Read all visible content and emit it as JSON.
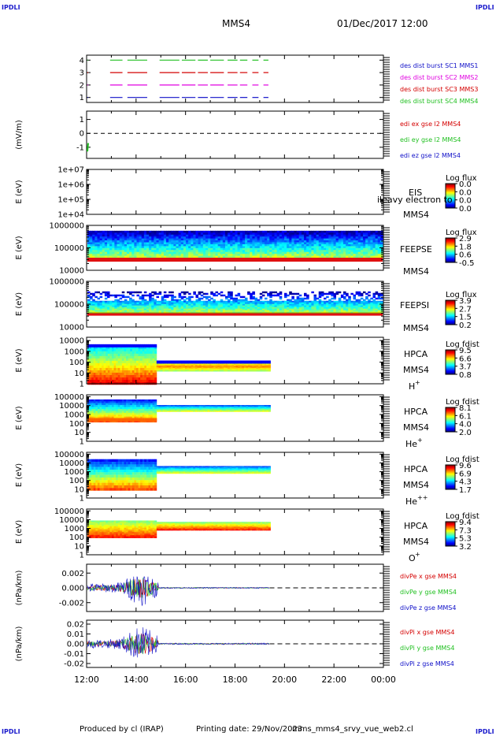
{
  "header": {
    "corner_label": "IPDLI",
    "spacecraft": "MMS4",
    "datetime": "01/Dec/2017 12:00"
  },
  "footer": {
    "produced_by": "Produced by cl (IRAP)",
    "printing_date": "Printing date: 29/Nov/2023",
    "file_name": "mms_mms4_srvy_vue_web2.cl"
  },
  "colors": {
    "red": "#d40000",
    "green": "#22c022",
    "blue": "#1010c8",
    "magenta": "#e000e0",
    "label_blue": "#1a1acc"
  },
  "chart_data": [
    {
      "type": "line",
      "panel": "burst",
      "yticks": [
        "1",
        "2",
        "3",
        "4"
      ],
      "ylim": [
        0.6,
        4.4
      ],
      "series": [
        {
          "name": "des dist burst SC1 MMS1",
          "color": "#1010c8",
          "level": 1
        },
        {
          "name": "des dist burst SC2 MMS2",
          "color": "#e000e0",
          "level": 2
        },
        {
          "name": "des dist burst SC3 MMS3",
          "color": "#d40000",
          "level": 3
        },
        {
          "name": "des dist burst SC4 MMS4",
          "color": "#22c022",
          "level": 4
        }
      ],
      "segments_hours": [
        [
          12.95,
          13.45
        ],
        [
          13.65,
          14.45
        ],
        [
          14.95,
          15.75
        ],
        [
          15.85,
          16.4
        ],
        [
          16.5,
          16.9
        ],
        [
          17.0,
          17.55
        ],
        [
          17.7,
          18.1
        ],
        [
          18.2,
          18.5
        ],
        [
          18.7,
          18.95
        ],
        [
          19.15,
          19.35
        ]
      ]
    },
    {
      "type": "line",
      "panel": "edi",
      "ylabel": "(mV/m)",
      "yticks": [
        "-1",
        "0",
        "1"
      ],
      "ylim": [
        -1.8,
        1.6
      ],
      "series": [
        {
          "name": "edi ex gse l2 MMS4",
          "color": "#d40000"
        },
        {
          "name": "edi ey gse l2 MMS4",
          "color": "#22c022"
        },
        {
          "name": "edi ez gse l2 MMS4",
          "color": "#1010c8"
        }
      ],
      "baseline": 0
    },
    {
      "type": "heatmap",
      "panel": "eis",
      "ylabel": "E (eV)",
      "yticks": [
        "1e+04",
        "1e+05",
        "1e+06",
        "1e+07"
      ],
      "ylim_log10": [
        4,
        7
      ],
      "instrument": "EIS",
      "spacecraft": "MMS4",
      "overlay_text": "ileavy electron to",
      "colorbar_title": "Log flux",
      "colorbar_ticks": [
        "0.0",
        "0.0",
        "0.0",
        "0.0"
      ]
    },
    {
      "type": "heatmap",
      "panel": "feeps_e",
      "ylabel": "E (eV)",
      "yticks": [
        "10000",
        "100000",
        "1000000"
      ],
      "ylim_log10": [
        4,
        6
      ],
      "instrument": "FEEPSE",
      "spacecraft": "MMS4",
      "colorbar_title": "Log flux",
      "colorbar_ticks": [
        "2.9",
        "1.8",
        "0.6",
        "-0.5"
      ],
      "time_range_hours": [
        12,
        24
      ]
    },
    {
      "type": "heatmap",
      "panel": "feeps_i",
      "ylabel": "E (eV)",
      "yticks": [
        "10000",
        "100000",
        "1000000"
      ],
      "ylim_log10": [
        4,
        6
      ],
      "instrument": "FEEPSI",
      "spacecraft": "MMS4",
      "colorbar_title": "Log flux",
      "colorbar_ticks": [
        "3.9",
        "2.7",
        "1.5",
        "0.2"
      ],
      "time_range_hours": [
        12,
        24
      ]
    },
    {
      "type": "heatmap",
      "panel": "hpca_h",
      "ylabel": "E (eV)",
      "yticks": [
        "1",
        "10",
        "100",
        "1000",
        "10000"
      ],
      "ylim_log10": [
        0,
        4.4
      ],
      "instrument": "HPCA",
      "spacecraft": "MMS4",
      "species": "H",
      "species_sup": "+",
      "colorbar_title": "Log fdist",
      "colorbar_ticks": [
        "9.5",
        "6.6",
        "3.7",
        "0.8"
      ],
      "time_range_hours": [
        12,
        19.4
      ]
    },
    {
      "type": "heatmap",
      "panel": "hpca_he1",
      "ylabel": "E (eV)",
      "yticks": [
        "1",
        "10",
        "100",
        "1000",
        "10000",
        "100000"
      ],
      "ylim_log10": [
        0,
        5
      ],
      "instrument": "HPCA",
      "spacecraft": "MMS4",
      "species": "He",
      "species_sup": "+",
      "colorbar_title": "Log fdist",
      "colorbar_ticks": [
        "8.1",
        "6.1",
        "4.0",
        "2.0"
      ],
      "time_range_hours": [
        12,
        19.4
      ]
    },
    {
      "type": "heatmap",
      "panel": "hpca_he2",
      "ylabel": "E (eV)",
      "yticks": [
        "1",
        "10",
        "100",
        "1000",
        "10000",
        "100000"
      ],
      "ylim_log10": [
        0,
        5
      ],
      "instrument": "HPCA",
      "spacecraft": "MMS4",
      "species": "He",
      "species_sup": "++",
      "colorbar_title": "Log fdist",
      "colorbar_ticks": [
        "9.6",
        "6.9",
        "4.3",
        "1.7"
      ],
      "time_range_hours": [
        12,
        19.4
      ]
    },
    {
      "type": "heatmap",
      "panel": "hpca_o",
      "ylabel": "E (eV)",
      "yticks": [
        "1",
        "10",
        "100",
        "1000",
        "10000",
        "100000"
      ],
      "ylim_log10": [
        0,
        5
      ],
      "instrument": "HPCA",
      "spacecraft": "MMS4",
      "species": "O",
      "species_sup": "+",
      "colorbar_title": "Log fdist",
      "colorbar_ticks": [
        "9.4",
        "7.3",
        "5.3",
        "3.2"
      ],
      "time_range_hours": [
        12,
        19.4
      ]
    },
    {
      "type": "line",
      "panel": "divpe",
      "ylabel": "(nPa/km)",
      "yticks": [
        "-0.002",
        "0.000",
        "0.002"
      ],
      "ylim": [
        -0.0032,
        0.0032
      ],
      "series": [
        {
          "name": "divPe x gse MMS4",
          "color": "#d40000"
        },
        {
          "name": "divPe y gse MMS4",
          "color": "#22c022"
        },
        {
          "name": "divPe z gse MMS4",
          "color": "#1010c8"
        }
      ],
      "active_range_hours": [
        12,
        19.4
      ],
      "baseline": 0
    },
    {
      "type": "line",
      "panel": "divpi",
      "ylabel": "(nPa/km)",
      "yticks": [
        "-0.02",
        "-0.01",
        "0.00",
        "0.01",
        "0.02"
      ],
      "ylim": [
        -0.024,
        0.024
      ],
      "series": [
        {
          "name": "divPi x gse MMS4",
          "color": "#d40000"
        },
        {
          "name": "divPi y gse MMS4",
          "color": "#22c022"
        },
        {
          "name": "divPi z gse MMS4",
          "color": "#1010c8"
        }
      ],
      "active_range_hours": [
        12,
        19.4
      ],
      "baseline": 0
    }
  ],
  "time_axis": {
    "ticks": [
      "12:00",
      "14:00",
      "16:00",
      "18:00",
      "20:00",
      "22:00",
      "00:00"
    ],
    "range_hours": [
      12,
      24
    ]
  }
}
